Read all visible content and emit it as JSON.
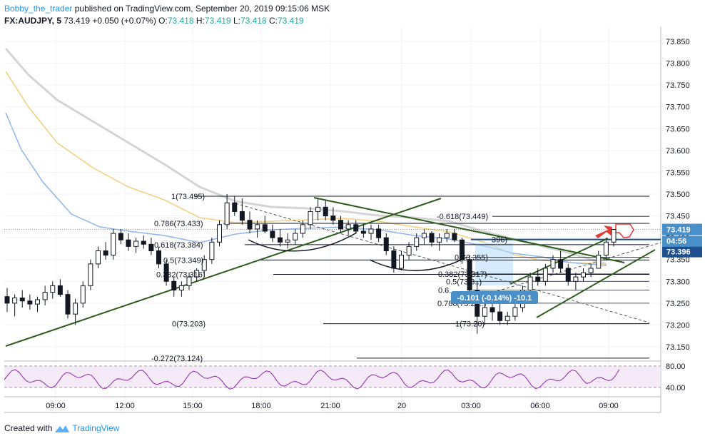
{
  "header": {
    "user": "Bobby_the_trader",
    "published": "published on TradingView.com, September 20, 2019 09:15:06 MSK",
    "symbol": "FX:AUDJPY, 5",
    "last": "73.419",
    "change": "+0.050 (+0.07%)",
    "o_label": "O:",
    "o": "73.418",
    "h_label": "H:",
    "h": "73.419",
    "l_label": "L:",
    "l": "73.418",
    "c_label": "C:",
    "c": "73.419"
  },
  "footer": {
    "created": "Created with",
    "brand": "TradingView"
  },
  "colors": {
    "green_line": "#2e5e1e",
    "sma_grey": "#d4d4d4",
    "sma_yellow": "#f3cf7d",
    "sma_blue": "#8fb5ea",
    "rsi": "#8e24aa",
    "price_tag": "#4a90c8",
    "candle": "#131722"
  },
  "chart_data": {
    "type": "candlestick",
    "symbol": "FX:AUDJPY",
    "interval": "5",
    "y_ticks": [
      "73.850",
      "73.800",
      "73.750",
      "73.700",
      "73.650",
      "73.600",
      "73.550",
      "73.500",
      "73.450",
      "73.400",
      "73.350",
      "73.300",
      "73.250",
      "73.200",
      "73.150"
    ],
    "ylim": [
      73.12,
      73.88
    ],
    "x_ticks": [
      "09:00",
      "12:00",
      "15:00",
      "18:00",
      "21:00",
      "20",
      "03:00",
      "06:00",
      "09:00"
    ],
    "price_tags": {
      "last": "73.419",
      "countdown": "04:56",
      "level": "73.396"
    },
    "fib_labels_left": [
      "1(73.495)",
      "0.786(73.433)",
      "0.618(73.384)",
      "0.5(73.349)",
      "0.382(73.316)",
      "0(73.203)",
      "-0.272(73.124)"
    ],
    "fib_labels_right": [
      "-0.618(73.449)",
      "0(73.355)",
      "0.382(73.317)",
      "0.5(73.3..)",
      "0.6..",
      "0.786(73.21..)",
      "1(73.20)"
    ],
    "fib_right_partial": "396)",
    "measure_label": "-0.101 (-0.14%) -10.1",
    "rsi_ticks": [
      "80.00",
      "40.00"
    ],
    "candles": [
      [
        73.265,
        73.285,
        73.23,
        73.25
      ],
      [
        73.25,
        73.27,
        73.22,
        73.262
      ],
      [
        73.262,
        73.28,
        73.24,
        73.255
      ],
      [
        73.255,
        73.27,
        73.235,
        73.248
      ],
      [
        73.248,
        73.265,
        73.23,
        73.258
      ],
      [
        73.258,
        73.29,
        73.245,
        73.275
      ],
      [
        73.275,
        73.3,
        73.26,
        73.29
      ],
      [
        73.29,
        73.305,
        73.265,
        73.27
      ],
      [
        73.27,
        73.28,
        73.215,
        73.225
      ],
      [
        73.225,
        73.26,
        73.2,
        73.25
      ],
      [
        73.25,
        73.3,
        73.24,
        73.29
      ],
      [
        73.29,
        73.35,
        73.28,
        73.34
      ],
      [
        73.34,
        73.38,
        73.33,
        73.37
      ],
      [
        73.37,
        73.39,
        73.35,
        73.36
      ],
      [
        73.36,
        73.42,
        73.35,
        73.41
      ],
      [
        73.41,
        73.42,
        73.385,
        73.395
      ],
      [
        73.395,
        73.41,
        73.37,
        73.38
      ],
      [
        73.38,
        73.4,
        73.365,
        73.392
      ],
      [
        73.392,
        73.405,
        73.375,
        73.385
      ],
      [
        73.385,
        73.4,
        73.36,
        73.37
      ],
      [
        73.37,
        73.38,
        73.33,
        73.34
      ],
      [
        73.34,
        73.35,
        73.29,
        73.3
      ],
      [
        73.3,
        73.31,
        73.265,
        73.28
      ],
      [
        73.28,
        73.3,
        73.265,
        73.29
      ],
      [
        73.29,
        73.32,
        73.28,
        73.31
      ],
      [
        73.31,
        73.33,
        73.3,
        73.325
      ],
      [
        73.325,
        73.36,
        73.31,
        73.35
      ],
      [
        73.35,
        73.4,
        73.34,
        73.39
      ],
      [
        73.39,
        73.44,
        73.38,
        73.43
      ],
      [
        73.43,
        73.5,
        73.42,
        73.48
      ],
      [
        73.48,
        73.495,
        73.45,
        73.46
      ],
      [
        73.46,
        73.49,
        73.43,
        73.44
      ],
      [
        73.44,
        73.46,
        73.41,
        73.42
      ],
      [
        73.42,
        73.44,
        73.4,
        73.43
      ],
      [
        73.43,
        73.45,
        73.41,
        73.415
      ],
      [
        73.415,
        73.43,
        73.39,
        73.4
      ],
      [
        73.4,
        73.42,
        73.38,
        73.39
      ],
      [
        73.39,
        73.41,
        73.375,
        73.395
      ],
      [
        73.395,
        73.42,
        73.385,
        73.41
      ],
      [
        73.41,
        73.44,
        73.4,
        73.43
      ],
      [
        73.43,
        73.47,
        73.42,
        73.46
      ],
      [
        73.46,
        73.49,
        73.44,
        73.47
      ],
      [
        73.47,
        73.485,
        73.44,
        73.45
      ],
      [
        73.45,
        73.47,
        73.43,
        73.44
      ],
      [
        73.44,
        73.45,
        73.41,
        73.42
      ],
      [
        73.42,
        73.44,
        73.405,
        73.43
      ],
      [
        73.43,
        73.44,
        73.41,
        73.415
      ],
      [
        73.415,
        73.43,
        73.4,
        73.41
      ],
      [
        73.41,
        73.43,
        73.395,
        73.42
      ],
      [
        73.42,
        73.43,
        73.39,
        73.4
      ],
      [
        73.4,
        73.41,
        73.36,
        73.37
      ],
      [
        73.37,
        73.38,
        73.32,
        73.33
      ],
      [
        73.33,
        73.37,
        73.325,
        73.36
      ],
      [
        73.36,
        73.39,
        73.35,
        73.38
      ],
      [
        73.38,
        73.41,
        73.37,
        73.4
      ],
      [
        73.4,
        73.42,
        73.385,
        73.41
      ],
      [
        73.41,
        73.415,
        73.38,
        73.39
      ],
      [
        73.39,
        73.41,
        73.37,
        73.4
      ],
      [
        73.4,
        73.42,
        73.39,
        73.41
      ],
      [
        73.41,
        73.42,
        73.39,
        73.395
      ],
      [
        73.395,
        73.4,
        73.34,
        73.35
      ],
      [
        73.35,
        73.36,
        73.27,
        73.28
      ],
      [
        73.28,
        73.3,
        73.18,
        73.22
      ],
      [
        73.22,
        73.26,
        73.2,
        73.24
      ],
      [
        73.24,
        73.27,
        73.21,
        73.23
      ],
      [
        73.23,
        73.25,
        73.2,
        73.21
      ],
      [
        73.21,
        73.23,
        73.2,
        73.22
      ],
      [
        73.22,
        73.25,
        73.21,
        73.24
      ],
      [
        73.24,
        73.29,
        73.23,
        73.28
      ],
      [
        73.28,
        73.32,
        73.27,
        73.31
      ],
      [
        73.31,
        73.33,
        73.29,
        73.3
      ],
      [
        73.3,
        73.34,
        73.29,
        73.33
      ],
      [
        73.33,
        73.36,
        73.32,
        73.35
      ],
      [
        73.35,
        73.37,
        73.32,
        73.33
      ],
      [
        73.33,
        73.34,
        73.29,
        73.3
      ],
      [
        73.3,
        73.32,
        73.28,
        73.31
      ],
      [
        73.31,
        73.33,
        73.3,
        73.32
      ],
      [
        73.32,
        73.34,
        73.31,
        73.33
      ],
      [
        73.33,
        73.37,
        73.33,
        73.36
      ],
      [
        73.36,
        73.4,
        73.35,
        73.39
      ],
      [
        73.39,
        73.42,
        73.38,
        73.419
      ]
    ]
  }
}
